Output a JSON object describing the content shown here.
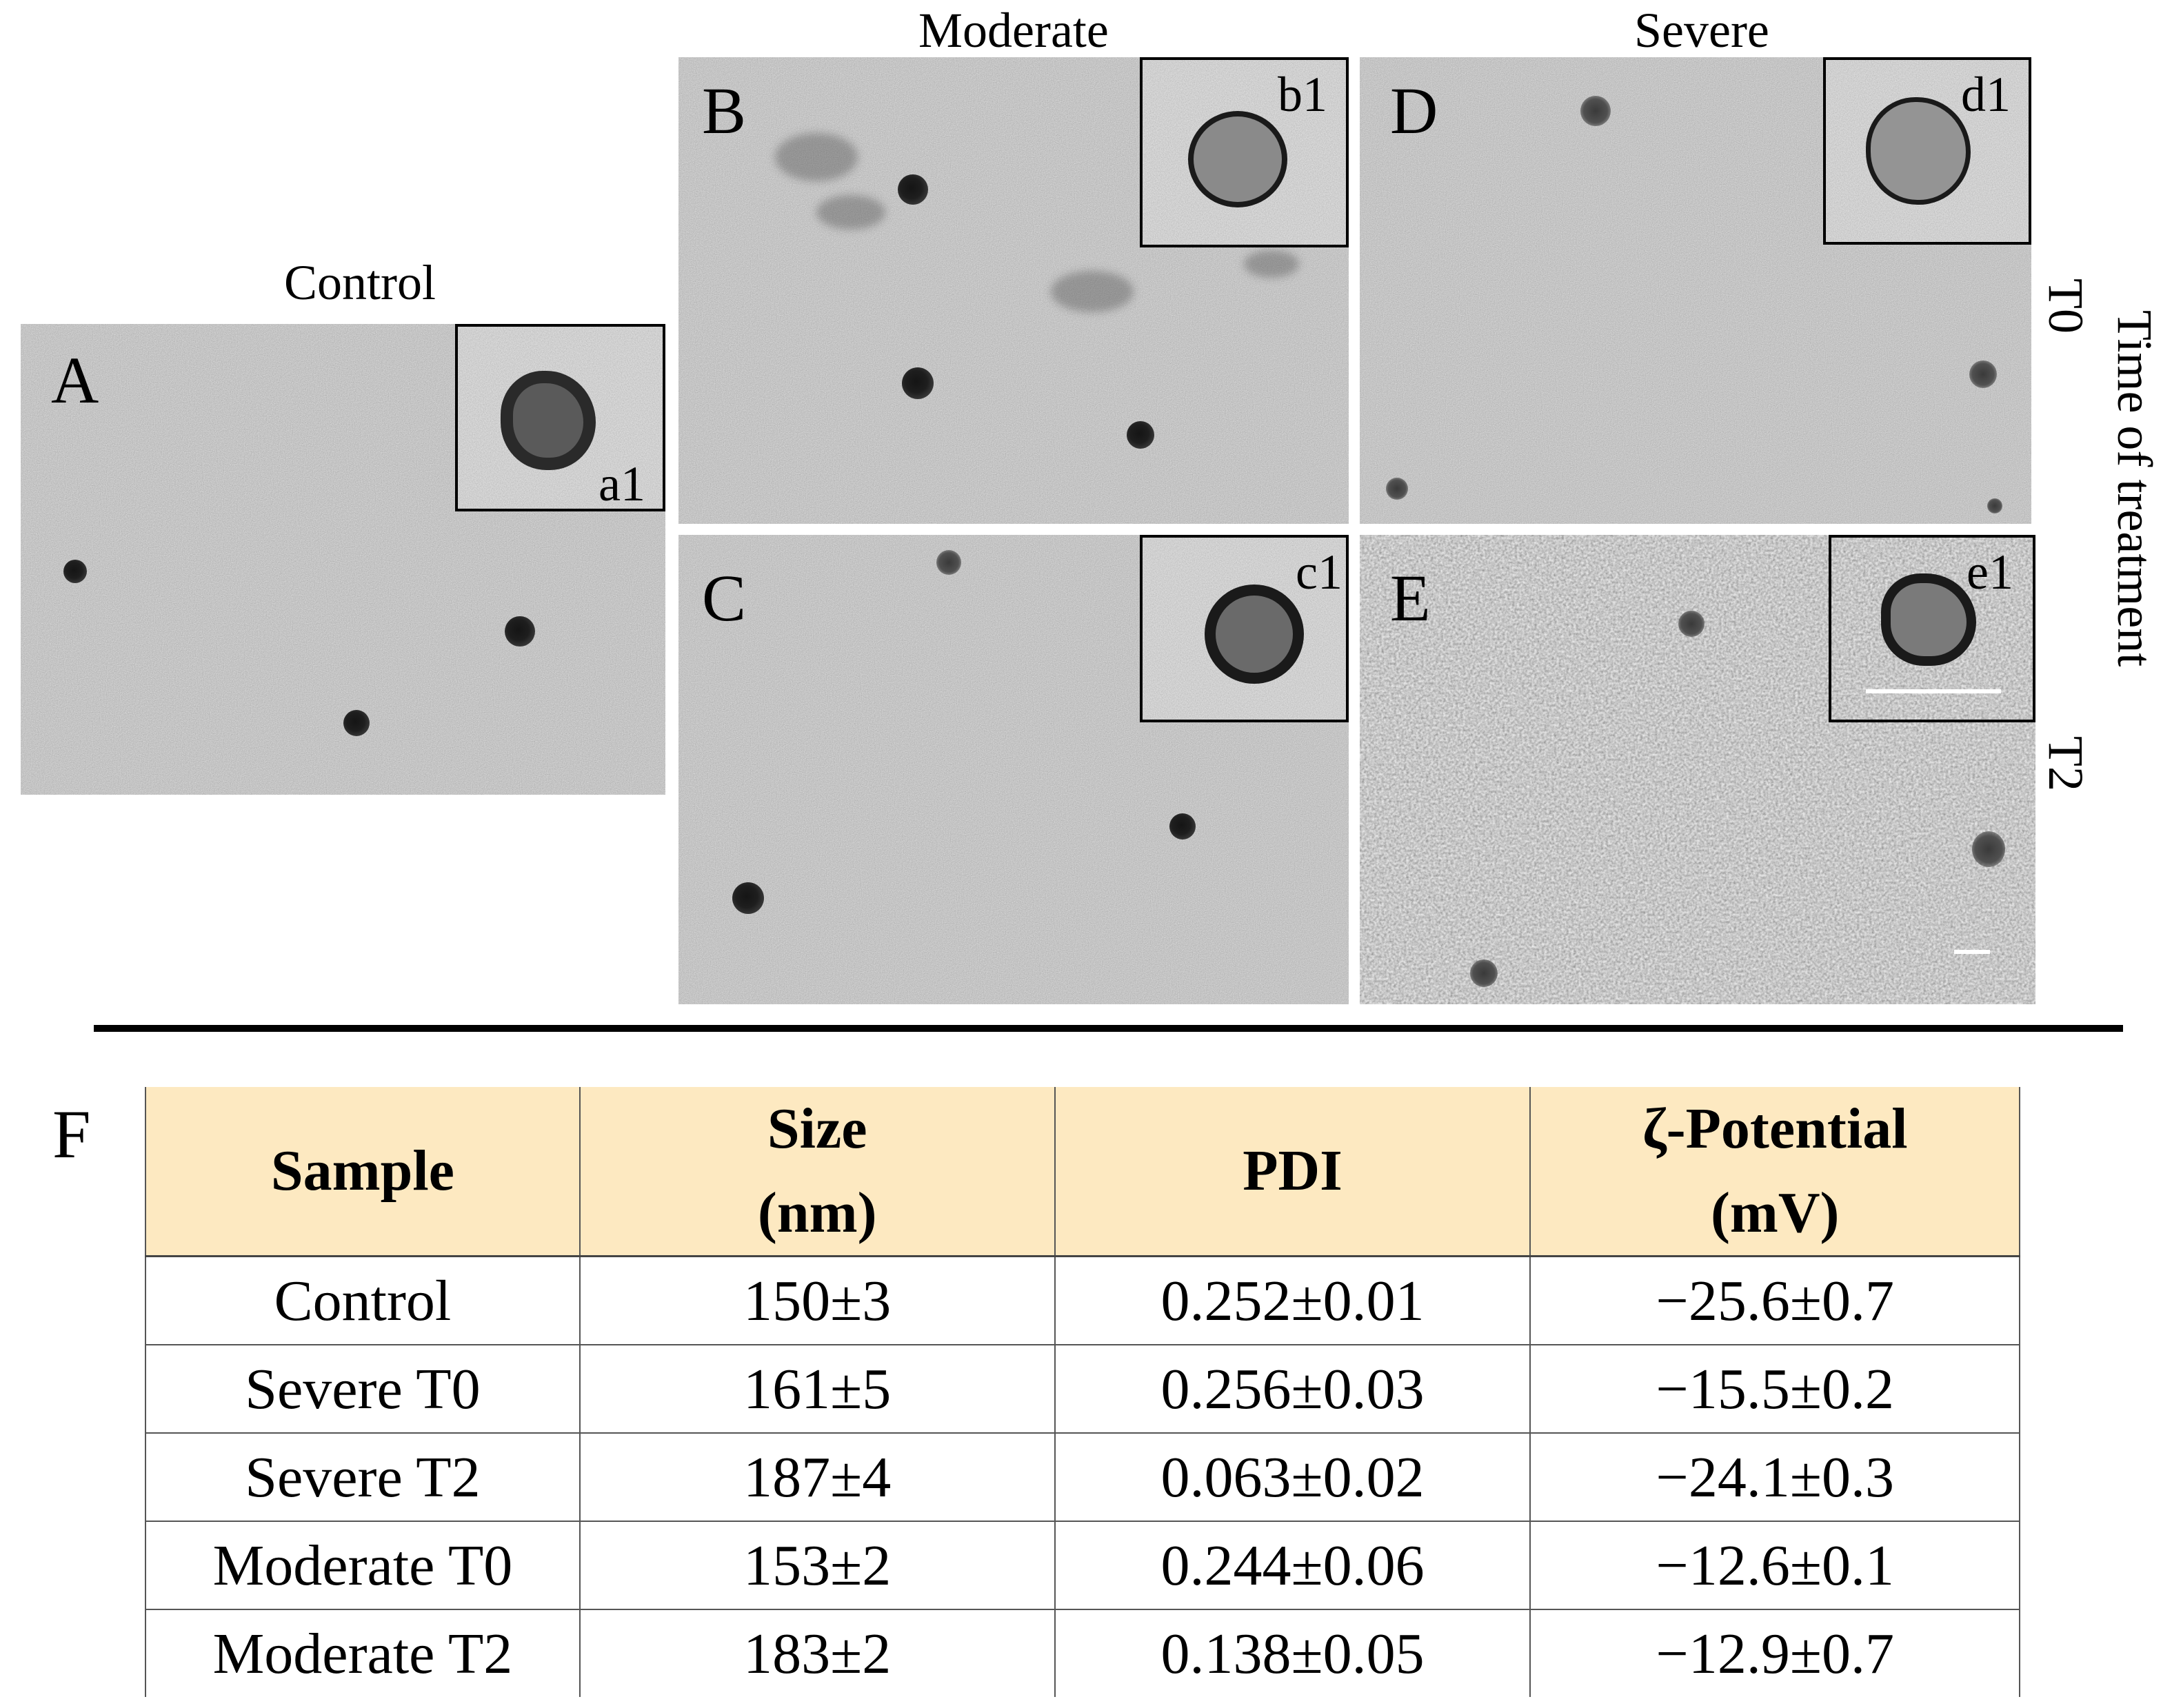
{
  "headers": {
    "control": "Control",
    "moderate": "Moderate",
    "severe": "Severe"
  },
  "side_labels": {
    "t0": "T0",
    "t2": "T2",
    "time": "Time of treatment"
  },
  "panels": {
    "A": {
      "label": "A",
      "inset_label": "a1"
    },
    "B": {
      "label": "B",
      "inset_label": "b1"
    },
    "C": {
      "label": "C",
      "inset_label": "c1"
    },
    "D": {
      "label": "D",
      "inset_label": "d1"
    },
    "E": {
      "label": "E",
      "inset_label": "e1"
    }
  },
  "table": {
    "panel_label": "F",
    "header": {
      "sample": "Sample",
      "size": [
        "Size",
        "(nm)"
      ],
      "pdi": "PDI",
      "zeta": [
        "ζ-Potential",
        "(mV)"
      ]
    },
    "rows": [
      [
        "Control",
        "150±3",
        "0.252±0.01",
        "−25.6±0.7"
      ],
      [
        "Severe T0",
        "161±5",
        "0.256±0.03",
        "−15.5±0.2"
      ],
      [
        "Severe T2",
        "187±4",
        "0.063±0.02",
        "−24.1±0.3"
      ],
      [
        "Moderate T0",
        "153±2",
        "0.244±0.06",
        "−12.6±0.1"
      ],
      [
        "Moderate T2",
        "183±2",
        "0.138±0.05",
        "−12.9±0.7"
      ]
    ]
  },
  "colors": {
    "table_header_bg": "#fde9c1",
    "micrograph_gray": "#8c8c8c",
    "scale_bar": "#ffffff"
  }
}
